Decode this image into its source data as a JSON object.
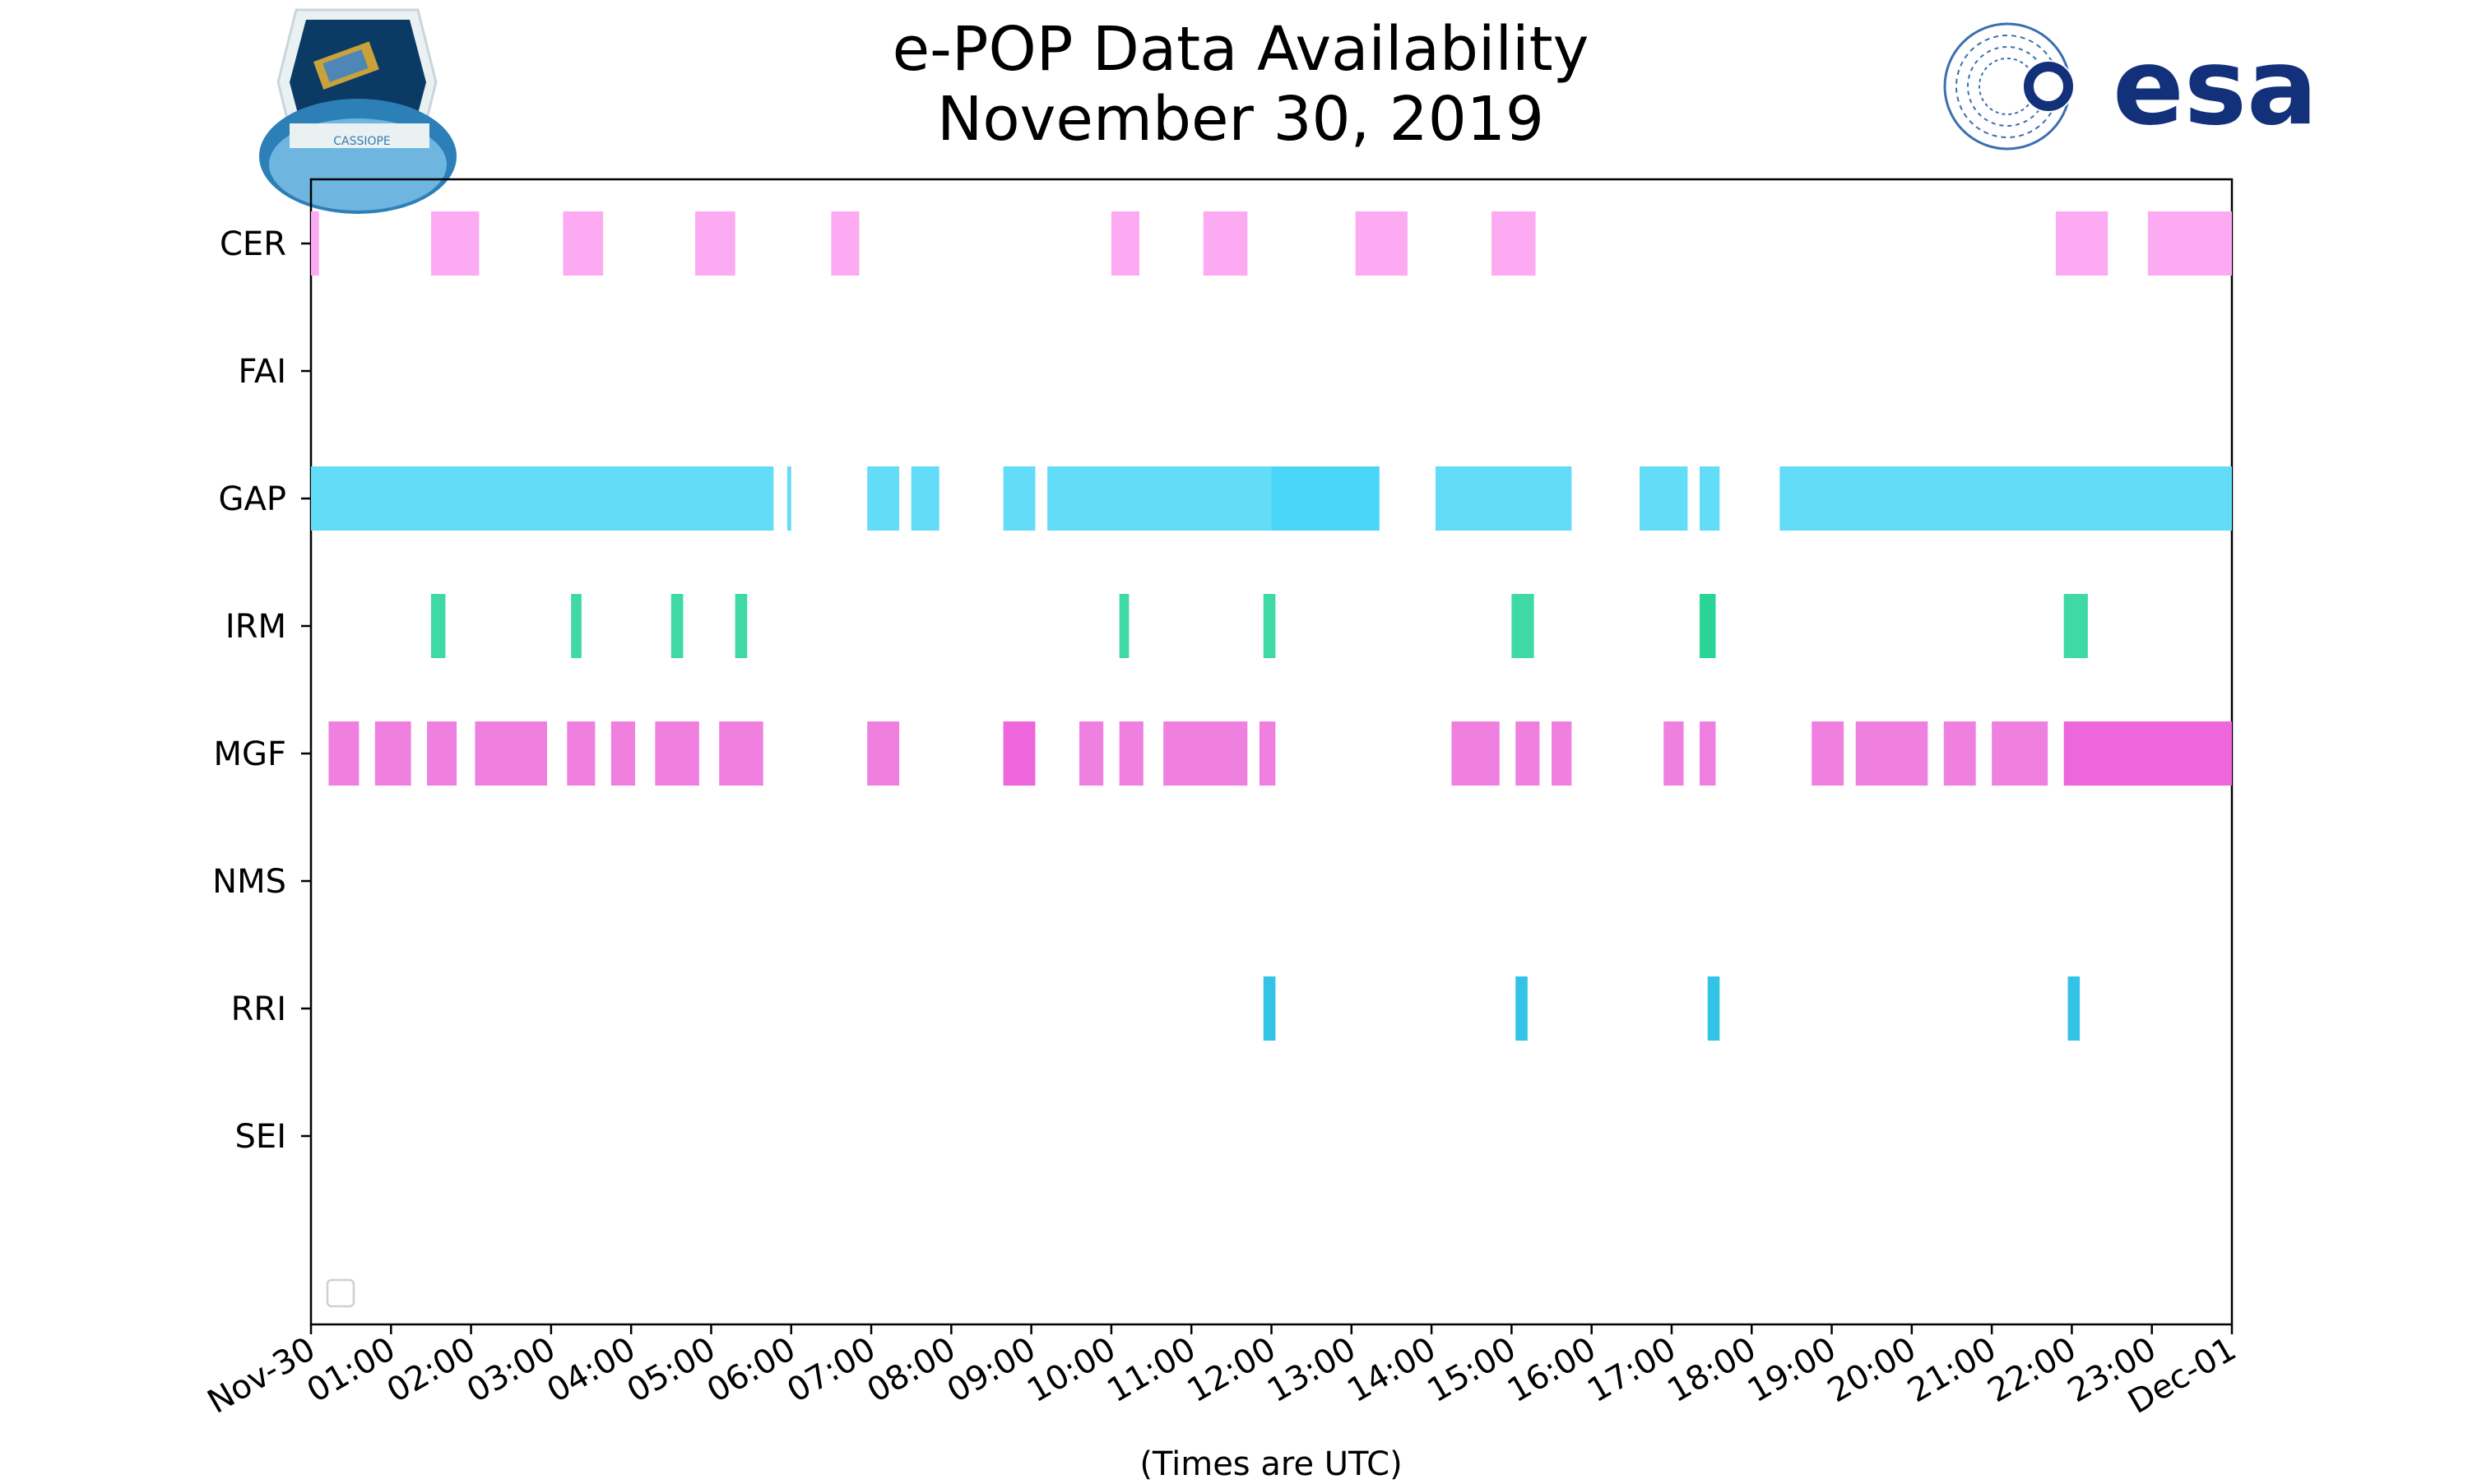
{
  "chart_data": {
    "type": "timeline",
    "title_line1": "e-POP Data Availability",
    "title_line2": "November 30, 2019",
    "xlabel": "(Times are UTC)",
    "x_range_hours": [
      0,
      24
    ],
    "x_tick_labels": [
      "Nov-30",
      "01:00",
      "02:00",
      "03:00",
      "04:00",
      "05:00",
      "06:00",
      "07:00",
      "08:00",
      "09:00",
      "10:00",
      "11:00",
      "12:00",
      "13:00",
      "14:00",
      "15:00",
      "16:00",
      "17:00",
      "18:00",
      "19:00",
      "20:00",
      "21:00",
      "22:00",
      "23:00",
      "Dec-01"
    ],
    "instruments": [
      "CER",
      "FAI",
      "GAP",
      "IRM",
      "MGF",
      "NMS",
      "RRI",
      "SEI"
    ],
    "colors": {
      "CER": "#fcaaf1",
      "FAI": "#9be15d",
      "GAP": "#63ddf7",
      "GAP_alt": "#4ad6f8",
      "IRM": "#3ed9a4",
      "IRM_alt": "#2ad497",
      "MGF": "#f080e0",
      "MGF_alt": "#ee66dc",
      "NMS": "#f5b041",
      "RRI": "#33c3e6",
      "SEI": "#a78bfa"
    },
    "series": [
      {
        "name": "CER",
        "intervals": [
          [
            0.0,
            0.1
          ],
          [
            1.5,
            2.1
          ],
          [
            3.15,
            3.65
          ],
          [
            4.8,
            5.3
          ],
          [
            6.5,
            6.85
          ],
          [
            10.0,
            10.35
          ],
          [
            11.15,
            11.7
          ],
          [
            13.05,
            13.7
          ],
          [
            14.75,
            15.3
          ],
          [
            21.8,
            22.45
          ],
          [
            22.95,
            24.0
          ]
        ]
      },
      {
        "name": "FAI",
        "intervals": []
      },
      {
        "name": "GAP",
        "intervals": [
          [
            0.0,
            5.78
          ],
          [
            5.95,
            6.0
          ],
          [
            6.95,
            7.35
          ],
          [
            7.5,
            7.85
          ],
          [
            8.65,
            9.05
          ],
          [
            9.2,
            12.0
          ],
          [
            12.0,
            13.35,
            "alt"
          ],
          [
            14.05,
            15.75
          ],
          [
            16.6,
            17.2
          ],
          [
            17.35,
            17.6
          ],
          [
            18.35,
            24.0
          ]
        ]
      },
      {
        "name": "IRM",
        "intervals": [
          [
            1.5,
            1.68
          ],
          [
            3.25,
            3.38
          ],
          [
            4.5,
            4.65
          ],
          [
            5.3,
            5.45
          ],
          [
            10.1,
            10.22
          ],
          [
            11.9,
            12.05
          ],
          [
            15.0,
            15.28
          ],
          [
            17.35,
            17.55,
            "alt"
          ],
          [
            21.9,
            22.2
          ]
        ]
      },
      {
        "name": "MGF",
        "intervals": [
          [
            0.22,
            0.6
          ],
          [
            0.8,
            1.25
          ],
          [
            1.45,
            1.82
          ],
          [
            2.05,
            2.95
          ],
          [
            3.2,
            3.55
          ],
          [
            3.75,
            4.05
          ],
          [
            4.3,
            4.85
          ],
          [
            5.1,
            5.65
          ],
          [
            6.95,
            7.35
          ],
          [
            8.65,
            9.05,
            "alt"
          ],
          [
            9.6,
            9.9
          ],
          [
            10.1,
            10.4
          ],
          [
            10.65,
            11.7
          ],
          [
            11.85,
            12.05
          ],
          [
            14.25,
            14.85
          ],
          [
            15.05,
            15.35
          ],
          [
            15.5,
            15.75
          ],
          [
            16.9,
            17.15
          ],
          [
            17.35,
            17.55
          ],
          [
            18.75,
            19.15
          ],
          [
            19.3,
            20.2
          ],
          [
            20.4,
            20.8
          ],
          [
            21.0,
            21.7
          ],
          [
            21.9,
            24.0,
            "alt"
          ]
        ]
      },
      {
        "name": "NMS",
        "intervals": []
      },
      {
        "name": "RRI",
        "intervals": [
          [
            11.9,
            12.05
          ],
          [
            15.05,
            15.2
          ],
          [
            17.45,
            17.6
          ],
          [
            21.95,
            22.1
          ]
        ]
      },
      {
        "name": "SEI",
        "intervals": []
      }
    ]
  },
  "logos": {
    "left": {
      "caption": "CASSIOPE"
    },
    "right": {
      "text": "esa"
    }
  }
}
